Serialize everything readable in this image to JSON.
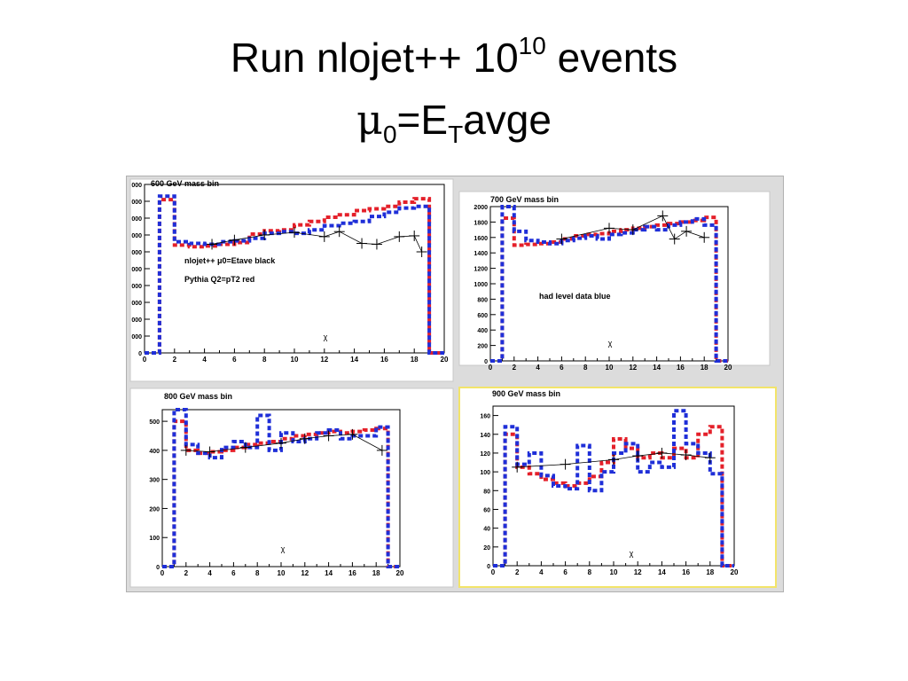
{
  "slide": {
    "title_line1": "Run nlojet++ 10",
    "title_line1_sup": "10",
    "title_line1_end": " events",
    "title_line2_mu": "μ",
    "title_line2_sub0": "0",
    "title_line2_mid": "=E",
    "title_line2_subT": "T",
    "title_line2_end": "avge"
  },
  "colors": {
    "nlojet": "#000000",
    "pythia": "#e4202a",
    "data": "#1f2fd8",
    "selected_border": "#f2e46a"
  },
  "chart_data": [
    {
      "type": "line",
      "title": "600 GeV mass bin",
      "xlabel": "χ",
      "xlim": [
        0,
        20
      ],
      "ylim": [
        0,
        2000
      ],
      "xticks": [
        0,
        2,
        4,
        6,
        8,
        10,
        12,
        14,
        16,
        18,
        20
      ],
      "yticks": [
        0,
        200,
        400,
        600,
        800,
        1000,
        1200,
        1400,
        1600,
        1800,
        2000
      ],
      "ytick_labels": [
        "0",
        "000",
        "000",
        "000",
        "000",
        "000",
        "000",
        "000",
        "000",
        "000",
        "000"
      ],
      "annotations": [
        "nlojet++ μ0=Etave black",
        "Pythia Q2=pT2 red"
      ],
      "bin_edges": [
        0,
        1,
        2,
        3,
        4,
        5,
        6,
        7,
        8,
        9,
        10,
        11,
        12,
        13,
        14,
        15,
        16,
        17,
        18,
        19,
        20
      ],
      "series": [
        {
          "name": "Pythia",
          "values": [
            0,
            1820,
            1280,
            1260,
            1270,
            1290,
            1310,
            1410,
            1450,
            1460,
            1520,
            1560,
            1610,
            1640,
            1690,
            1710,
            1740,
            1790,
            1830,
            0
          ]
        },
        {
          "name": "Data",
          "values": [
            0,
            1860,
            1320,
            1300,
            1290,
            1320,
            1330,
            1360,
            1420,
            1440,
            1420,
            1460,
            1510,
            1540,
            1560,
            1620,
            1670,
            1720,
            1740,
            0
          ]
        },
        {
          "name": "nlojet",
          "points": [
            [
              4.5,
              1290
            ],
            [
              6,
              1340
            ],
            [
              8,
              1400
            ],
            [
              10,
              1430
            ],
            [
              12,
              1380
            ],
            [
              13,
              1440
            ],
            [
              14.5,
              1300
            ],
            [
              15.5,
              1290
            ],
            [
              17,
              1380
            ],
            [
              18,
              1390
            ],
            [
              18.5,
              1200
            ]
          ]
        }
      ]
    },
    {
      "type": "line",
      "title": "700 GeV mass bin",
      "xlabel": "χ",
      "xlim": [
        0,
        20
      ],
      "ylim": [
        0,
        2000
      ],
      "xticks": [
        0,
        2,
        4,
        6,
        8,
        10,
        12,
        14,
        16,
        18,
        20
      ],
      "yticks": [
        0,
        200,
        400,
        600,
        800,
        1000,
        1200,
        1400,
        1600,
        1800,
        2000
      ],
      "annotations": [
        "had level data blue"
      ],
      "bin_edges": [
        0,
        1,
        2,
        3,
        4,
        5,
        6,
        7,
        8,
        9,
        10,
        11,
        12,
        13,
        14,
        15,
        16,
        17,
        18,
        19,
        20
      ],
      "series": [
        {
          "name": "Pythia",
          "values": [
            0,
            1850,
            1500,
            1510,
            1520,
            1540,
            1580,
            1620,
            1640,
            1650,
            1680,
            1700,
            1720,
            1740,
            1760,
            1780,
            1800,
            1820,
            1860,
            0
          ]
        },
        {
          "name": "Data",
          "values": [
            0,
            2040,
            1680,
            1560,
            1540,
            1520,
            1560,
            1590,
            1620,
            1580,
            1640,
            1660,
            1700,
            1740,
            1700,
            1760,
            1800,
            1840,
            1760,
            0
          ]
        },
        {
          "name": "nlojet",
          "points": [
            [
              6,
              1580
            ],
            [
              10,
              1720
            ],
            [
              12,
              1700
            ],
            [
              14.5,
              1880
            ],
            [
              15.5,
              1580
            ],
            [
              16.5,
              1680
            ],
            [
              18,
              1600
            ]
          ]
        }
      ]
    },
    {
      "type": "line",
      "title": "800 GeV mass bin",
      "xlabel": "χ",
      "xlim": [
        0,
        20
      ],
      "ylim": [
        0,
        540
      ],
      "xticks": [
        0,
        2,
        4,
        6,
        8,
        10,
        12,
        14,
        16,
        18,
        20
      ],
      "yticks": [
        0,
        100,
        200,
        300,
        400,
        500
      ],
      "bin_edges": [
        0,
        1,
        2,
        3,
        4,
        5,
        6,
        7,
        8,
        9,
        10,
        11,
        12,
        13,
        14,
        15,
        16,
        17,
        18,
        19,
        20
      ],
      "series": [
        {
          "name": "Pythia",
          "values": [
            0,
            500,
            400,
            390,
            395,
            400,
            410,
            420,
            425,
            430,
            440,
            450,
            455,
            460,
            465,
            460,
            465,
            470,
            475,
            0
          ]
        },
        {
          "name": "Data",
          "values": [
            0,
            540,
            420,
            390,
            375,
            410,
            430,
            410,
            520,
            400,
            460,
            430,
            440,
            460,
            470,
            440,
            450,
            450,
            480,
            0
          ]
        },
        {
          "name": "nlojet",
          "points": [
            [
              2,
              400
            ],
            [
              4,
              395
            ],
            [
              7,
              410
            ],
            [
              10,
              425
            ],
            [
              12,
              440
            ],
            [
              14,
              450
            ],
            [
              16,
              455
            ],
            [
              18.5,
              400
            ]
          ]
        }
      ]
    },
    {
      "type": "line",
      "title": "900 GeV mass bin",
      "xlabel": "χ",
      "xlim": [
        0,
        20
      ],
      "ylim": [
        0,
        170
      ],
      "xticks": [
        0,
        2,
        4,
        6,
        8,
        10,
        12,
        14,
        16,
        18,
        20
      ],
      "yticks": [
        0,
        20,
        40,
        60,
        80,
        100,
        120,
        140,
        160
      ],
      "bin_edges": [
        0,
        1,
        2,
        3,
        4,
        5,
        6,
        7,
        8,
        9,
        10,
        11,
        12,
        13,
        14,
        15,
        16,
        17,
        18,
        19,
        20
      ],
      "series": [
        {
          "name": "Pythia",
          "values": [
            0,
            140,
            105,
            98,
            92,
            88,
            85,
            88,
            95,
            110,
            135,
            125,
            115,
            120,
            115,
            125,
            115,
            140,
            148,
            0
          ]
        },
        {
          "name": "Data",
          "values": [
            0,
            148,
            108,
            120,
            96,
            85,
            82,
            128,
            80,
            100,
            120,
            130,
            100,
            110,
            105,
            165,
            130,
            120,
            98,
            0
          ]
        },
        {
          "name": "nlojet",
          "points": [
            [
              2,
              105
            ],
            [
              6,
              108
            ],
            [
              10,
              113
            ],
            [
              12,
              117
            ],
            [
              14,
              120
            ],
            [
              16,
              118
            ],
            [
              18,
              115
            ]
          ]
        }
      ]
    }
  ]
}
